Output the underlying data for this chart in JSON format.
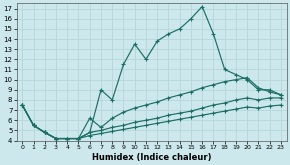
{
  "xlabel": "Humidex (Indice chaleur)",
  "ylabel": "",
  "bg_color": "#cce8ec",
  "grid_color": "#b8d8dc",
  "line_color": "#1a6e65",
  "xlim": [
    -0.5,
    23.5
  ],
  "ylim": [
    4,
    17.5
  ],
  "xticks": [
    0,
    1,
    2,
    3,
    4,
    5,
    6,
    7,
    8,
    9,
    10,
    11,
    12,
    13,
    14,
    15,
    16,
    17,
    18,
    19,
    20,
    21,
    22,
    23
  ],
  "yticks": [
    4,
    5,
    6,
    7,
    8,
    9,
    10,
    11,
    12,
    13,
    14,
    15,
    16,
    17
  ],
  "series": [
    {
      "x": [
        0,
        1,
        2,
        3,
        4,
        5,
        6,
        7,
        8,
        9,
        10,
        11,
        12,
        13,
        14,
        15,
        16,
        17,
        18,
        19,
        20,
        21,
        22,
        23
      ],
      "y": [
        7.5,
        5.5,
        4.8,
        4.2,
        4.2,
        4.2,
        4.8,
        9.0,
        8.0,
        11.5,
        13.5,
        12.0,
        13.8,
        14.5,
        15.0,
        16.0,
        17.2,
        14.5,
        11.0,
        10.5,
        10.0,
        9.0,
        9.0,
        8.5
      ]
    },
    {
      "x": [
        0,
        1,
        2,
        3,
        4,
        5,
        6,
        7,
        8,
        9,
        10,
        11,
        12,
        13,
        14,
        15,
        16,
        17,
        18,
        19,
        20,
        21,
        22,
        23
      ],
      "y": [
        7.5,
        5.5,
        4.8,
        4.2,
        4.2,
        4.2,
        6.2,
        5.3,
        6.2,
        6.8,
        7.2,
        7.5,
        7.8,
        8.2,
        8.5,
        8.8,
        9.2,
        9.5,
        9.8,
        10.0,
        10.2,
        9.2,
        8.8,
        8.5
      ]
    },
    {
      "x": [
        0,
        1,
        2,
        3,
        4,
        5,
        6,
        7,
        8,
        9,
        10,
        11,
        12,
        13,
        14,
        15,
        16,
        17,
        18,
        19,
        20,
        21,
        22,
        23
      ],
      "y": [
        7.5,
        5.5,
        4.8,
        4.2,
        4.2,
        4.2,
        4.8,
        5.0,
        5.3,
        5.5,
        5.8,
        6.0,
        6.2,
        6.5,
        6.7,
        6.9,
        7.2,
        7.5,
        7.7,
        8.0,
        8.2,
        8.0,
        8.2,
        8.2
      ]
    },
    {
      "x": [
        0,
        1,
        2,
        3,
        4,
        5,
        6,
        7,
        8,
        9,
        10,
        11,
        12,
        13,
        14,
        15,
        16,
        17,
        18,
        19,
        20,
        21,
        22,
        23
      ],
      "y": [
        7.5,
        5.5,
        4.8,
        4.2,
        4.2,
        4.2,
        4.5,
        4.7,
        4.9,
        5.1,
        5.3,
        5.5,
        5.7,
        5.9,
        6.1,
        6.3,
        6.5,
        6.7,
        6.9,
        7.1,
        7.3,
        7.2,
        7.4,
        7.5
      ]
    }
  ]
}
